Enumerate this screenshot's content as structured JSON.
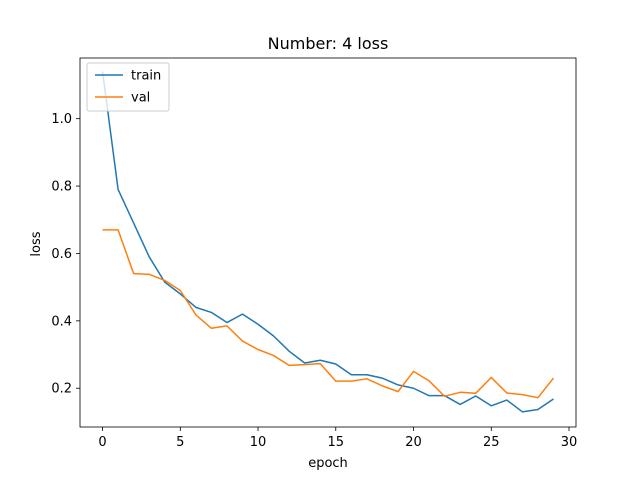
{
  "chart_data": {
    "type": "line",
    "title": "Number: 4 loss",
    "xlabel": "epoch",
    "ylabel": "loss",
    "xlim": [
      -1.45,
      30.45
    ],
    "ylim": [
      0.085,
      1.18
    ],
    "xticks": [
      0,
      5,
      10,
      15,
      20,
      25,
      30
    ],
    "yticks": [
      0.2,
      0.4,
      0.6,
      0.8,
      1.0
    ],
    "grid": false,
    "legend": "top-left",
    "x": [
      0,
      1,
      2,
      3,
      4,
      5,
      6,
      7,
      8,
      9,
      10,
      11,
      12,
      13,
      14,
      15,
      16,
      17,
      18,
      19,
      20,
      21,
      22,
      23,
      24,
      25,
      26,
      27,
      28,
      29
    ],
    "series": [
      {
        "name": "train",
        "color": "#1f77b4",
        "values": [
          1.14,
          0.79,
          0.69,
          0.59,
          0.515,
          0.48,
          0.44,
          0.425,
          0.395,
          0.42,
          0.39,
          0.355,
          0.31,
          0.275,
          0.283,
          0.272,
          0.24,
          0.24,
          0.23,
          0.21,
          0.2,
          0.178,
          0.178,
          0.152,
          0.177,
          0.148,
          0.165,
          0.13,
          0.137,
          0.168
        ]
      },
      {
        "name": "val",
        "color": "#ff7f0e",
        "values": [
          0.67,
          0.67,
          0.54,
          0.538,
          0.52,
          0.49,
          0.418,
          0.378,
          0.385,
          0.34,
          0.315,
          0.297,
          0.268,
          0.27,
          0.273,
          0.221,
          0.221,
          0.228,
          0.207,
          0.19,
          0.25,
          0.222,
          0.176,
          0.188,
          0.185,
          0.232,
          0.186,
          0.181,
          0.172,
          0.23
        ]
      }
    ]
  }
}
